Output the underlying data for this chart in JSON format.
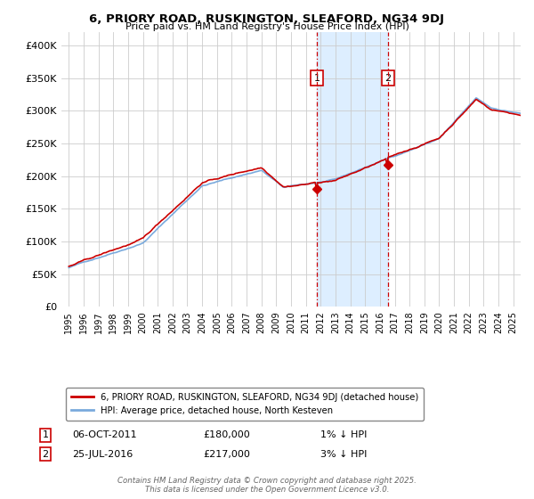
{
  "title1": "6, PRIORY ROAD, RUSKINGTON, SLEAFORD, NG34 9DJ",
  "title2": "Price paid vs. HM Land Registry's House Price Index (HPI)",
  "legend_line1": "6, PRIORY ROAD, RUSKINGTON, SLEAFORD, NG34 9DJ (detached house)",
  "legend_line2": "HPI: Average price, detached house, North Kesteven",
  "annotation1_label": "1",
  "annotation1_date": "06-OCT-2011",
  "annotation1_price": "£180,000",
  "annotation1_note": "1% ↓ HPI",
  "annotation2_label": "2",
  "annotation2_date": "25-JUL-2016",
  "annotation2_price": "£217,000",
  "annotation2_note": "3% ↓ HPI",
  "footer": "Contains HM Land Registry data © Crown copyright and database right 2025.\nThis data is licensed under the Open Government Licence v3.0.",
  "sale1_x": 2011.75,
  "sale1_y": 180000,
  "sale2_x": 2016.55,
  "sale2_y": 217000,
  "shade_xmin": 2011.75,
  "shade_xmax": 2016.55,
  "marker1_y": 350000,
  "marker2_y": 350000,
  "ylim": [
    0,
    420000
  ],
  "xlim_min": 1994.5,
  "xlim_max": 2025.5,
  "red_color": "#cc0000",
  "blue_color": "#7aaadd",
  "shade_color": "#ddeeff",
  "grid_color": "#cccccc"
}
